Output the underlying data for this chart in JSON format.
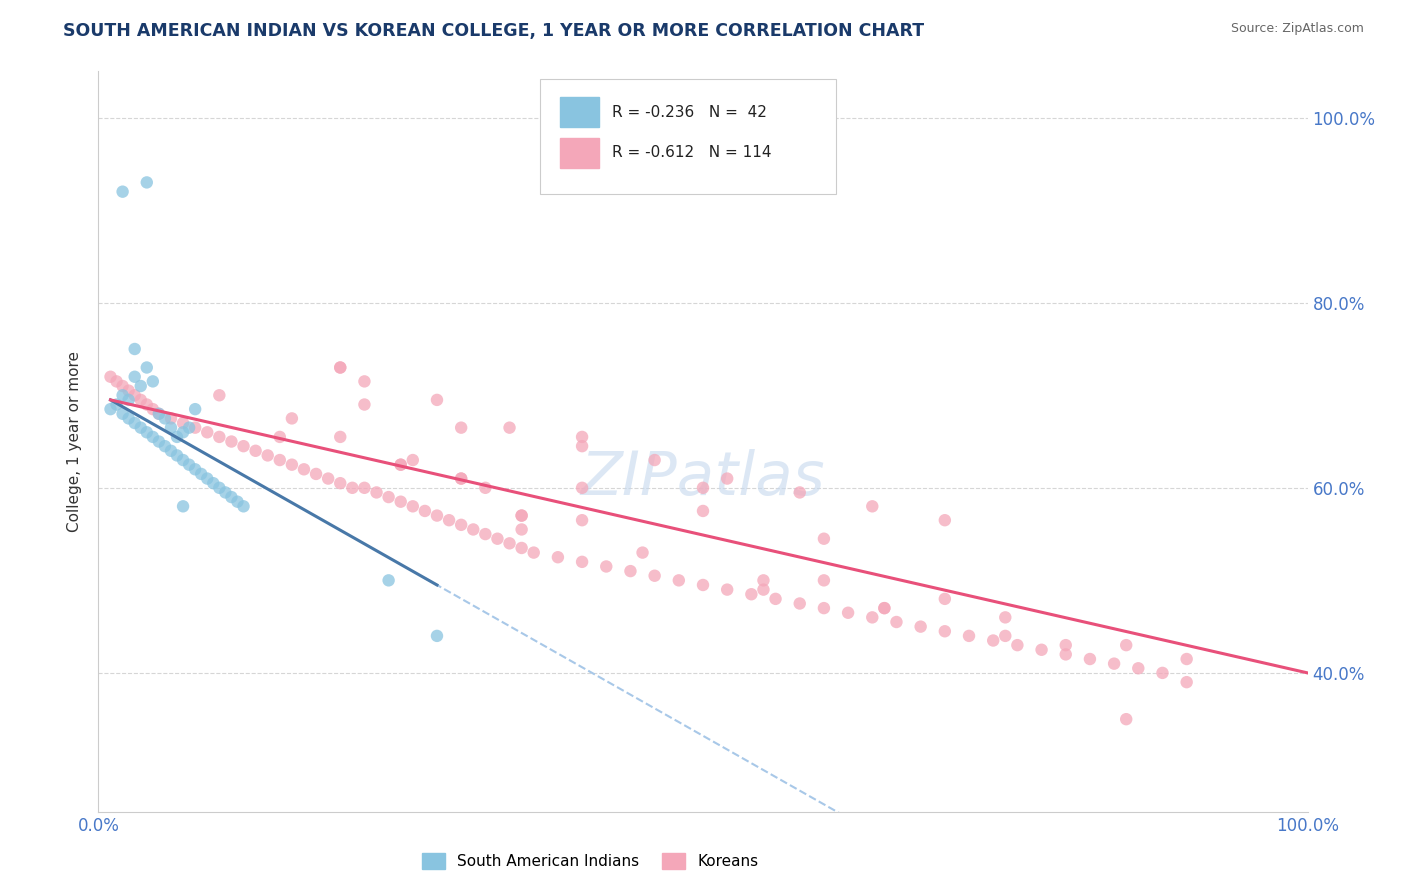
{
  "title": "SOUTH AMERICAN INDIAN VS KOREAN COLLEGE, 1 YEAR OR MORE CORRELATION CHART",
  "source": "Source: ZipAtlas.com",
  "ylabel": "College, 1 year or more",
  "xlim": [
    0.0,
    1.0
  ],
  "ylim": [
    0.25,
    1.05
  ],
  "x_ticks": [
    0.0,
    1.0
  ],
  "x_tick_labels": [
    "0.0%",
    "100.0%"
  ],
  "y_ticks": [
    0.4,
    0.6,
    0.8,
    1.0
  ],
  "y_tick_labels": [
    "40.0%",
    "60.0%",
    "80.0%",
    "100.0%"
  ],
  "color_blue": "#89c4e0",
  "color_pink": "#f4a7b9",
  "color_blue_line": "#4878a8",
  "color_pink_line": "#e8507a",
  "color_dashed": "#a8c8e8",
  "title_color": "#1a3a6a",
  "source_color": "#666666",
  "tick_color": "#4878c8",
  "watermark": "ZIPatlas",
  "blue_scatter_x": [
    0.01,
    0.015,
    0.02,
    0.025,
    0.03,
    0.035,
    0.04,
    0.045,
    0.05,
    0.055,
    0.06,
    0.065,
    0.07,
    0.075,
    0.08,
    0.085,
    0.09,
    0.095,
    0.1,
    0.105,
    0.11,
    0.115,
    0.12,
    0.02,
    0.025,
    0.03,
    0.035,
    0.04,
    0.045,
    0.05,
    0.055,
    0.06,
    0.065,
    0.07,
    0.075,
    0.08,
    0.07,
    0.24,
    0.28,
    0.03,
    0.04,
    0.02
  ],
  "blue_scatter_y": [
    0.685,
    0.69,
    0.68,
    0.675,
    0.67,
    0.665,
    0.66,
    0.655,
    0.65,
    0.645,
    0.64,
    0.635,
    0.63,
    0.625,
    0.62,
    0.615,
    0.61,
    0.605,
    0.6,
    0.595,
    0.59,
    0.585,
    0.58,
    0.7,
    0.695,
    0.72,
    0.71,
    0.73,
    0.715,
    0.68,
    0.675,
    0.665,
    0.655,
    0.66,
    0.665,
    0.685,
    0.58,
    0.5,
    0.44,
    0.75,
    0.93,
    0.92
  ],
  "pink_scatter_x": [
    0.01,
    0.015,
    0.02,
    0.025,
    0.03,
    0.035,
    0.04,
    0.045,
    0.05,
    0.06,
    0.07,
    0.08,
    0.09,
    0.1,
    0.11,
    0.12,
    0.13,
    0.14,
    0.15,
    0.16,
    0.17,
    0.18,
    0.19,
    0.2,
    0.21,
    0.22,
    0.23,
    0.24,
    0.25,
    0.26,
    0.27,
    0.28,
    0.29,
    0.3,
    0.31,
    0.32,
    0.33,
    0.34,
    0.35,
    0.36,
    0.38,
    0.4,
    0.42,
    0.44,
    0.46,
    0.48,
    0.5,
    0.52,
    0.54,
    0.56,
    0.58,
    0.6,
    0.62,
    0.64,
    0.66,
    0.68,
    0.7,
    0.72,
    0.74,
    0.76,
    0.78,
    0.8,
    0.82,
    0.84,
    0.86,
    0.88,
    0.9,
    0.2,
    0.25,
    0.3,
    0.35,
    0.1,
    0.15,
    0.2,
    0.25,
    0.3,
    0.35,
    0.4,
    0.22,
    0.28,
    0.34,
    0.4,
    0.46,
    0.52,
    0.58,
    0.64,
    0.7,
    0.16,
    0.2,
    0.26,
    0.32,
    0.4,
    0.5,
    0.6,
    0.7,
    0.8,
    0.9,
    0.35,
    0.45,
    0.55,
    0.65,
    0.75,
    0.85,
    0.55,
    0.65,
    0.75,
    0.85,
    0.22,
    0.3,
    0.4,
    0.5,
    0.6
  ],
  "pink_scatter_y": [
    0.72,
    0.715,
    0.71,
    0.705,
    0.7,
    0.695,
    0.69,
    0.685,
    0.68,
    0.675,
    0.67,
    0.665,
    0.66,
    0.655,
    0.65,
    0.645,
    0.64,
    0.635,
    0.63,
    0.625,
    0.62,
    0.615,
    0.61,
    0.605,
    0.6,
    0.6,
    0.595,
    0.59,
    0.585,
    0.58,
    0.575,
    0.57,
    0.565,
    0.56,
    0.555,
    0.55,
    0.545,
    0.54,
    0.535,
    0.53,
    0.525,
    0.52,
    0.515,
    0.51,
    0.505,
    0.5,
    0.495,
    0.49,
    0.485,
    0.48,
    0.475,
    0.47,
    0.465,
    0.46,
    0.455,
    0.45,
    0.445,
    0.44,
    0.435,
    0.43,
    0.425,
    0.42,
    0.415,
    0.41,
    0.405,
    0.4,
    0.39,
    0.73,
    0.625,
    0.61,
    0.57,
    0.7,
    0.655,
    0.73,
    0.625,
    0.61,
    0.57,
    0.6,
    0.715,
    0.695,
    0.665,
    0.655,
    0.63,
    0.61,
    0.595,
    0.58,
    0.565,
    0.675,
    0.655,
    0.63,
    0.6,
    0.565,
    0.575,
    0.5,
    0.48,
    0.43,
    0.415,
    0.555,
    0.53,
    0.5,
    0.47,
    0.44,
    0.35,
    0.49,
    0.47,
    0.46,
    0.43,
    0.69,
    0.665,
    0.645,
    0.6,
    0.545
  ]
}
